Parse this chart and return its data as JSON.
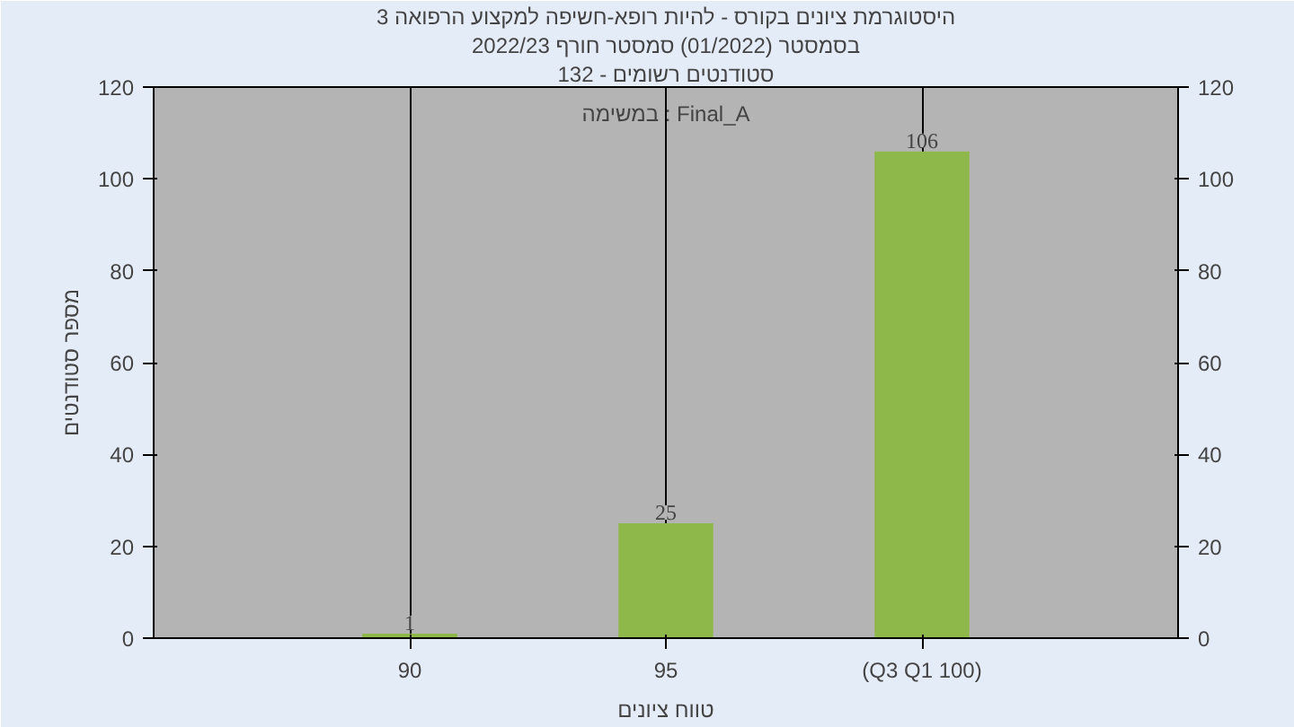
{
  "chart_data": {
    "type": "bar",
    "title": "היסטוגרמת ציונים בקורס - להיות רופא-חשיפה למקצוע הרפואה 3",
    "subtitle": "בסמסטר (01/2022) סמסטר חורף 2022/23",
    "xlabel": "טווח ציונים",
    "ylabel": "מספר סטודנטים",
    "categories": [
      "90",
      "95",
      "(Q3 Q1 100)"
    ],
    "values": [
      1,
      25,
      106
    ],
    "color": "#8fb84a",
    "ylim": [
      0,
      120
    ],
    "yticks": [
      0,
      20,
      40,
      60,
      80,
      100,
      120
    ],
    "y2lim": [
      0,
      120
    ],
    "y2ticks": [
      0,
      20,
      40,
      60,
      80,
      100,
      120
    ],
    "annotations": [
      "סטודנטים רשומים - 132",
      "במשימה : Final_A"
    ],
    "data_labels": true,
    "grid": "x"
  }
}
